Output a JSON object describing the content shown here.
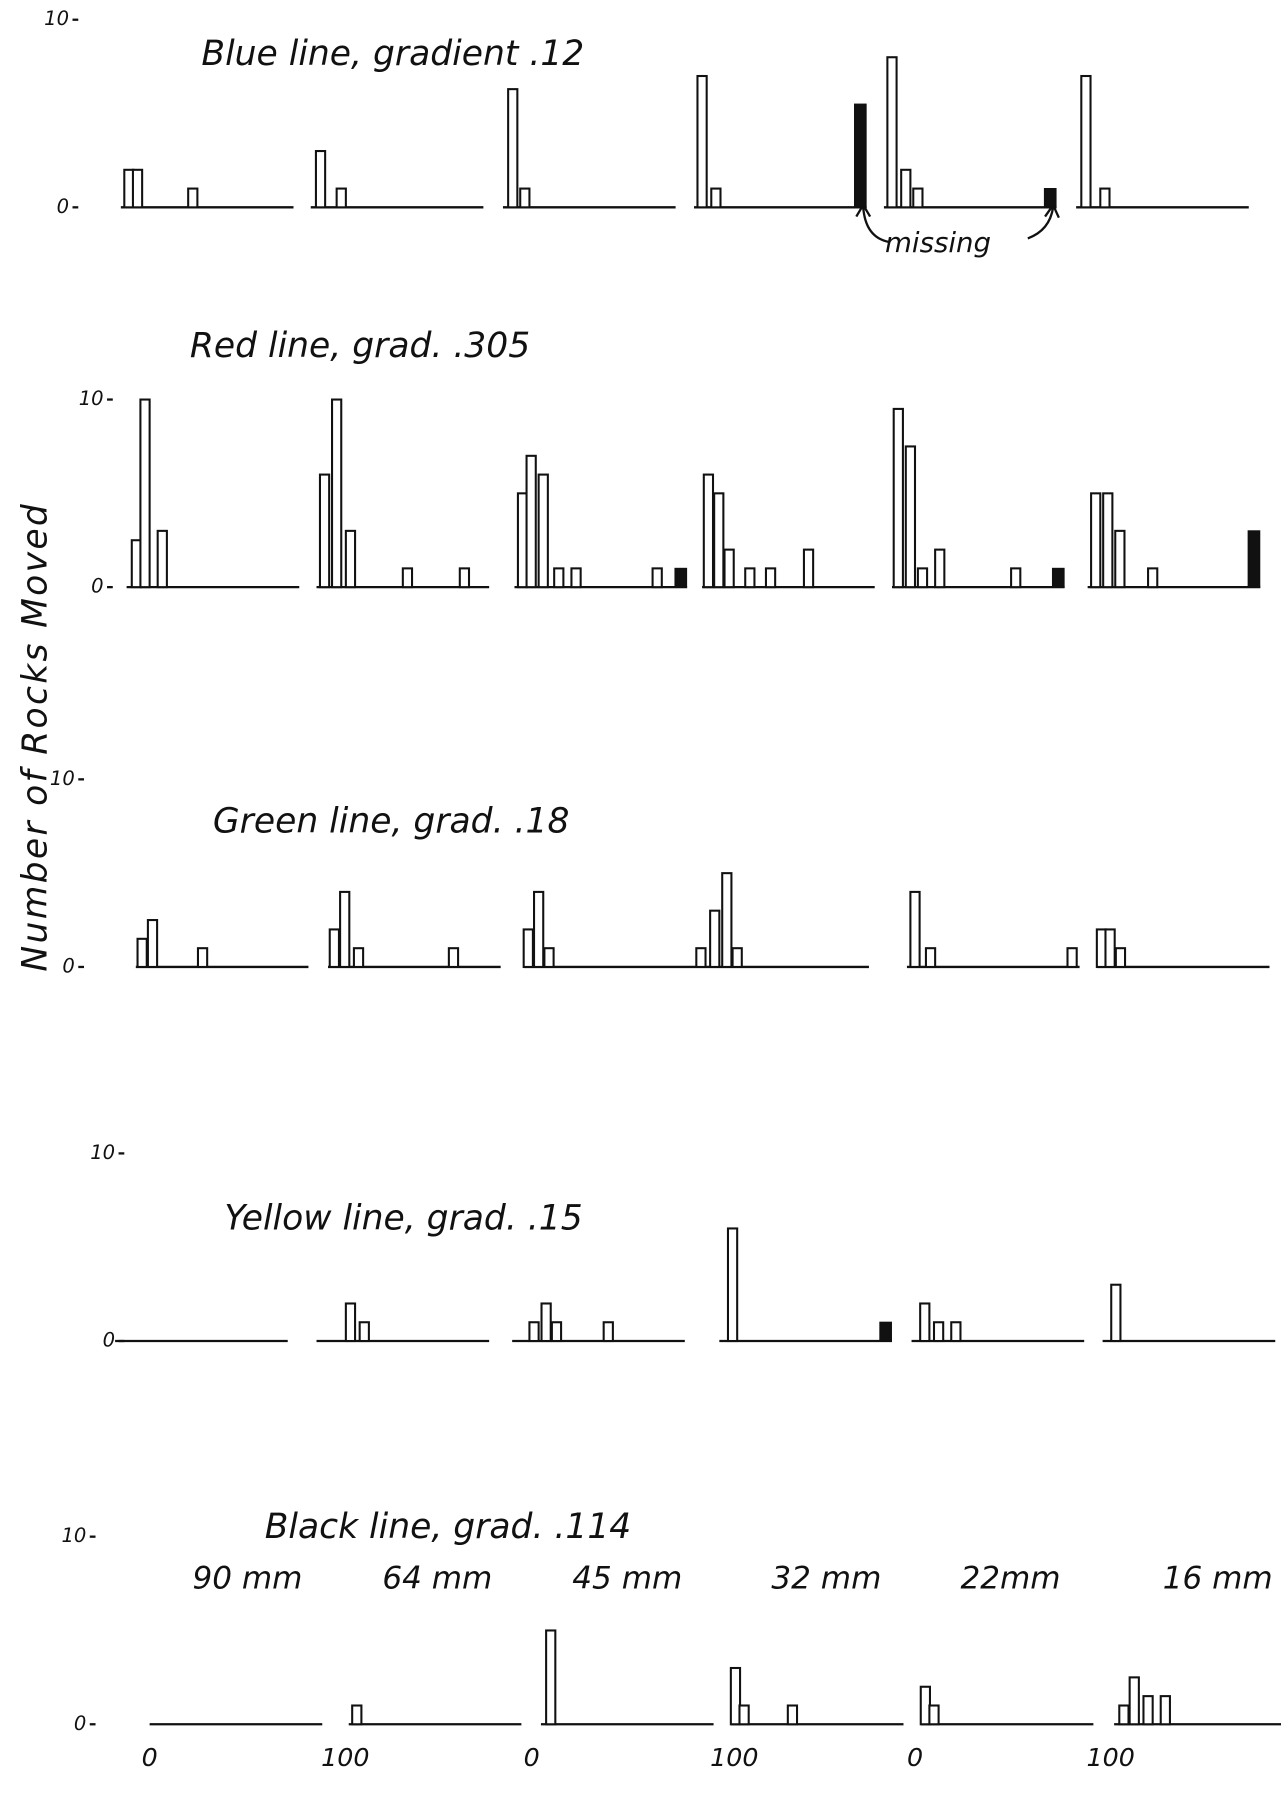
{
  "y_label": "Number of Rocks Moved",
  "size_labels": [
    "90 mm",
    "64 mm",
    "45 mm",
    "32 mm",
    "22mm",
    "16 mm"
  ],
  "distance_labels": [
    0,
    100,
    0,
    100,
    0,
    100
  ],
  "chart_data": [
    {
      "type": "bar",
      "title": "Blue line, gradient .12",
      "annotation": "missing",
      "ylim": [
        0,
        10
      ],
      "yticks": [
        0,
        10
      ],
      "xlim": [
        0,
        100
      ],
      "panels": [
        {
          "x": [
            2,
            7,
            39
          ],
          "values": [
            2,
            2,
            1
          ]
        },
        {
          "x": [
            3,
            15
          ],
          "values": [
            3,
            1
          ]
        },
        {
          "x": [
            3,
            10
          ],
          "values": [
            6.3,
            1
          ]
        },
        {
          "x": [
            2,
            10
          ],
          "values": [
            7,
            1
          ],
          "missing": 5.5
        },
        {
          "x": [
            2,
            10,
            17
          ],
          "values": [
            8,
            2,
            1
          ],
          "missing": 1
        },
        {
          "x": [
            3,
            14
          ],
          "values": [
            7,
            1
          ]
        }
      ]
    },
    {
      "type": "bar",
      "title": "Red line, grad. .305",
      "ylim": [
        0,
        10
      ],
      "yticks": [
        0,
        10
      ],
      "xlim": [
        0,
        100
      ],
      "panels": [
        {
          "x": [
            3,
            8,
            18
          ],
          "values": [
            2.5,
            10,
            3
          ]
        },
        {
          "x": [
            2,
            9,
            17,
            50,
            83
          ],
          "values": [
            6,
            10,
            3,
            1,
            1
          ]
        },
        {
          "x": [
            2,
            7,
            14,
            23,
            33,
            80
          ],
          "values": [
            5,
            7,
            6,
            1,
            1,
            1
          ],
          "missing": 1
        },
        {
          "x": [
            1,
            7,
            13,
            25,
            37,
            59
          ],
          "values": [
            6,
            5,
            2,
            1,
            1,
            2
          ]
        },
        {
          "x": [
            1,
            8,
            15,
            25,
            69
          ],
          "values": [
            9.5,
            7.5,
            1,
            2,
            1
          ],
          "missing": 1
        },
        {
          "x": [
            2,
            9,
            16,
            35
          ],
          "values": [
            5,
            5,
            3,
            1
          ],
          "missing": 3
        }
      ]
    },
    {
      "type": "bar",
      "title": "Green line, grad. .18",
      "ylim": [
        0,
        10
      ],
      "yticks": [
        0,
        10
      ],
      "xlim": [
        0,
        100
      ],
      "panels": [
        {
          "x": [
            1,
            7,
            36
          ],
          "values": [
            1.5,
            2.5,
            1
          ]
        },
        {
          "x": [
            1,
            7,
            15,
            70
          ],
          "values": [
            2,
            4,
            1,
            1
          ]
        },
        {
          "x": [
            0,
            6,
            12
          ],
          "values": [
            2,
            4,
            1
          ]
        },
        {
          "x": [
            0,
            8,
            15,
            21
          ],
          "values": [
            1,
            3,
            5,
            1
          ]
        },
        {
          "x": [
            2,
            11,
            93
          ],
          "values": [
            4,
            1,
            1
          ]
        },
        {
          "x": [
            0,
            5,
            11
          ],
          "values": [
            2,
            2,
            1
          ]
        }
      ]
    },
    {
      "type": "bar",
      "title": "Yellow line, grad. .15",
      "ylim": [
        0,
        10
      ],
      "yticks": [
        0,
        10
      ],
      "xlim": [
        0,
        100
      ],
      "panels": [
        {
          "x": [],
          "values": []
        },
        {
          "x": [
            17,
            25
          ],
          "values": [
            2,
            1
          ]
        },
        {
          "x": [
            10,
            17,
            23,
            53
          ],
          "values": [
            1,
            2,
            1,
            1
          ]
        },
        {
          "x": [
            5
          ],
          "values": [
            6
          ],
          "missing": 1
        },
        {
          "x": [
            5,
            13,
            23
          ],
          "values": [
            2,
            1,
            1
          ]
        },
        {
          "x": [
            5
          ],
          "values": [
            3
          ]
        }
      ]
    },
    {
      "type": "bar",
      "title": "Black line, grad. .114",
      "ylim": [
        0,
        10
      ],
      "yticks": [
        0,
        10
      ],
      "xlim": [
        0,
        100
      ],
      "panels": [
        {
          "x": [],
          "values": []
        },
        {
          "x": [
            2
          ],
          "values": [
            1
          ]
        },
        {
          "x": [
            3
          ],
          "values": [
            5
          ]
        },
        {
          "x": [
            0,
            5,
            33
          ],
          "values": [
            3,
            1,
            1
          ]
        },
        {
          "x": [
            0,
            5
          ],
          "values": [
            2,
            1
          ]
        },
        {
          "x": [
            3,
            9,
            17,
            27
          ],
          "values": [
            1,
            2.5,
            1.5,
            1.5
          ]
        }
      ]
    }
  ]
}
